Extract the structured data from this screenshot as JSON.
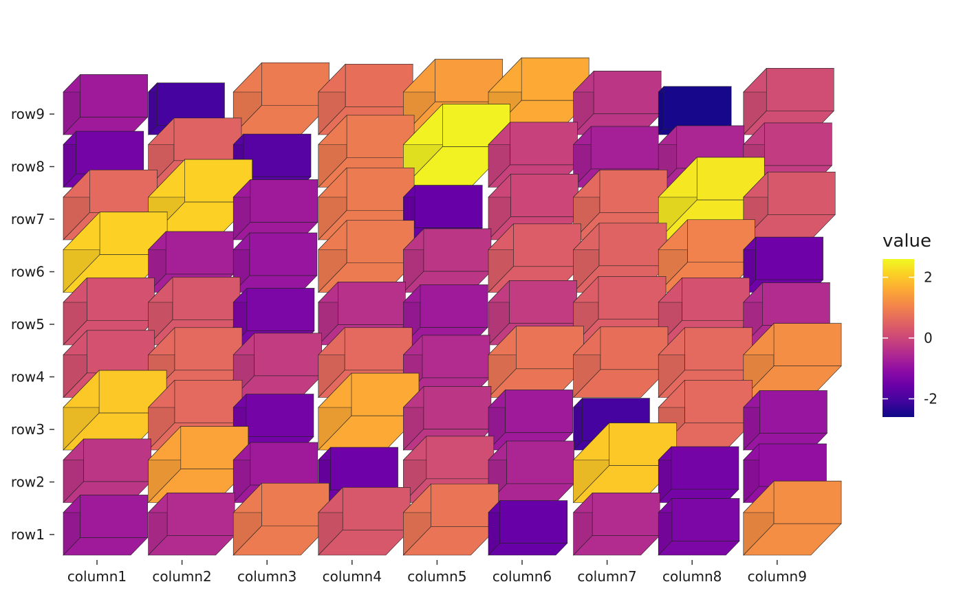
{
  "chart_data": {
    "type": "heatmap",
    "title": "",
    "xlabel": "",
    "ylabel": "",
    "categories": [
      "column1",
      "column2",
      "column3",
      "column4",
      "column5",
      "column6",
      "column7",
      "column8",
      "column9"
    ],
    "rows": [
      "row1",
      "row2",
      "row3",
      "row4",
      "row5",
      "row6",
      "row7",
      "row8",
      "row9"
    ],
    "values": [
      [
        -0.8,
        -0.5,
        0.9,
        0.3,
        0.8,
        -1.6,
        -0.5,
        -1.3,
        1.2
      ],
      [
        -0.3,
        1.5,
        -0.8,
        -1.5,
        0.1,
        -0.6,
        2.0,
        -1.4,
        -1.0
      ],
      [
        2.0,
        0.6,
        -1.4,
        1.6,
        -0.3,
        -0.8,
        -2.0,
        0.6,
        -0.9
      ],
      [
        0.2,
        0.6,
        -0.2,
        0.6,
        -0.5,
        0.8,
        0.7,
        0.6,
        1.2
      ],
      [
        0.2,
        0.3,
        -1.3,
        -0.4,
        -0.8,
        -0.2,
        0.4,
        0.2,
        -0.5
      ],
      [
        2.1,
        -0.7,
        -0.9,
        0.9,
        -0.3,
        0.4,
        0.5,
        1.0,
        -1.5
      ],
      [
        0.6,
        2.1,
        -0.8,
        0.9,
        -1.6,
        0.0,
        0.6,
        2.4,
        0.3
      ],
      [
        -1.4,
        0.5,
        -1.8,
        0.9,
        2.5,
        -0.1,
        -0.7,
        -0.6,
        -0.2
      ],
      [
        -0.8,
        -2.0,
        0.9,
        0.7,
        1.4,
        1.6,
        -0.3,
        -2.5,
        0.1
      ]
    ],
    "value_range": [
      -2.6,
      2.6
    ],
    "legend": {
      "title": "value",
      "ticks": [
        2,
        0,
        -2
      ],
      "tick_labels": [
        "2",
        "0",
        "-2"
      ],
      "position": "right"
    },
    "colormap": "plasma",
    "grid": false
  }
}
